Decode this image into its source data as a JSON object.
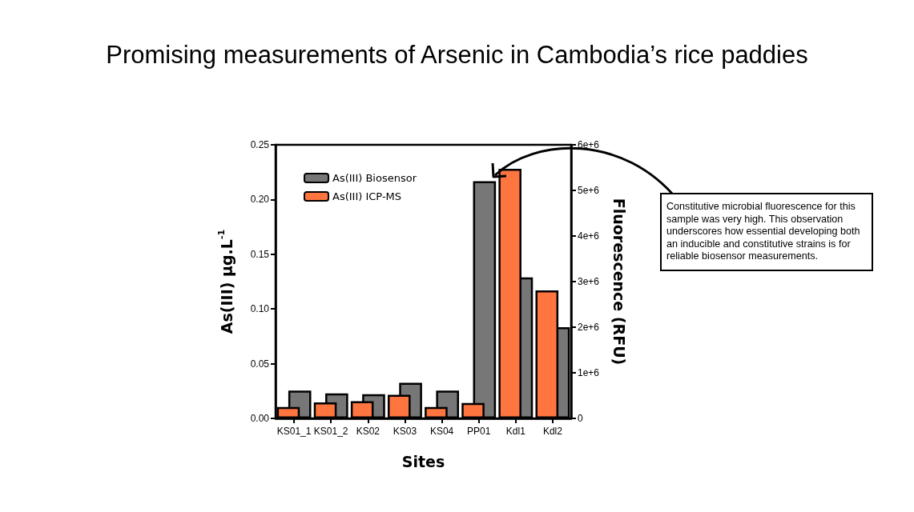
{
  "chart_data": {
    "type": "bar",
    "title": "Promising measurements of Arsenic in Cambodia’s rice paddies",
    "xlabel": "Sites",
    "ylabel": "As(III) µg.L$^{-1}$",
    "y2label": "Fluorescence (RFU)",
    "categories": [
      "KS01_1",
      "KS01_2",
      "KS02",
      "KS03",
      "KS04",
      "PP01",
      "Kdl1",
      "Kdl2"
    ],
    "series": [
      {
        "name": "As(III) Biosensor",
        "color": "#777777",
        "axis": "y2",
        "values": [
          610000,
          550000,
          530000,
          780000,
          610000,
          5200000,
          3090000,
          2000000
        ]
      },
      {
        "name": "As(III) ICP-MS",
        "color": "#ff7540",
        "values": [
          0.0105,
          0.0147,
          0.0158,
          0.0216,
          0.0105,
          0.014,
          0.228,
          0.117
        ]
      }
    ],
    "ylim": [
      0,
      0.25
    ],
    "yticks": [
      {
        "value": 0,
        "label": "0.00"
      },
      {
        "value": 0.05,
        "label": "0.05"
      },
      {
        "value": 0.1,
        "label": "0.10"
      },
      {
        "value": 0.15,
        "label": "0.15"
      },
      {
        "value": 0.2,
        "label": "0.20"
      },
      {
        "value": 0.25,
        "label": "0.25"
      }
    ],
    "y2lim": [
      0,
      6000000
    ],
    "y2ticks": [
      {
        "value": 0,
        "label": "0"
      },
      {
        "value": 1000000,
        "label": "1e+6"
      },
      {
        "value": 2000000,
        "label": "2e+6"
      },
      {
        "value": 3000000,
        "label": "3e+6"
      },
      {
        "value": 4000000,
        "label": "4e+6"
      },
      {
        "value": 5000000,
        "label": "5e+6"
      },
      {
        "value": 6000000,
        "label": "6e+6"
      }
    ],
    "legend": "top left",
    "grid": false,
    "annotations": [
      "Constitutive microbial fluorescence for this sample was very high. This observation underscores how essential developing both an inducible and constitutive strains is for reliable biosensor measurements."
    ]
  }
}
